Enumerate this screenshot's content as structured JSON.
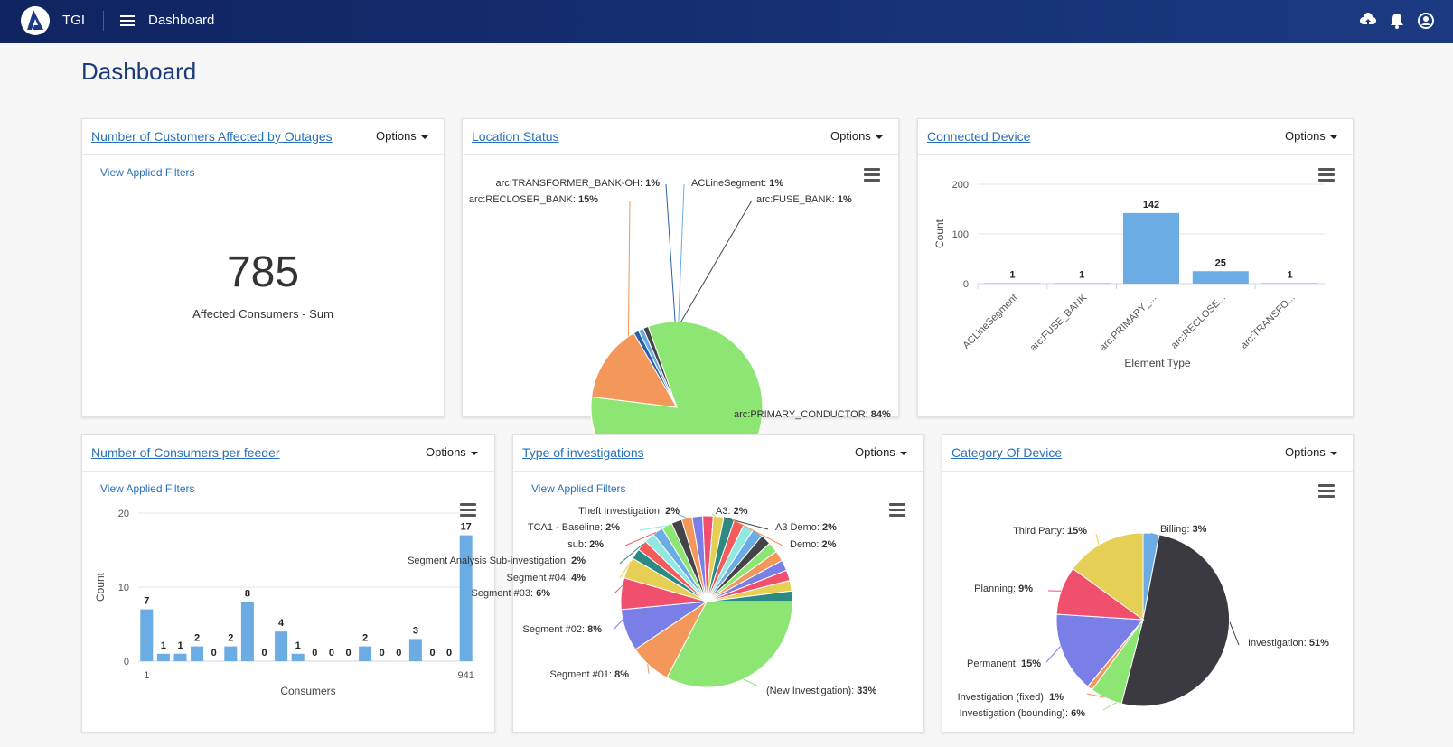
{
  "header": {
    "brand": "TGI",
    "breadcrumb": "Dashboard"
  },
  "page_title": "Dashboard",
  "options_label": "Options",
  "filters_label": "View Applied Filters",
  "cards": {
    "customers_affected": {
      "title": "Number of Customers Affected by Outages",
      "value": "785",
      "caption": "Affected Consumers - Sum"
    },
    "location_status": {
      "title": "Location Status"
    },
    "connected_device": {
      "title": "Connected Device"
    },
    "consumers_per_feeder": {
      "title": "Number of Consumers per feeder"
    },
    "investigations": {
      "title": "Type of investigations"
    },
    "category_device": {
      "title": "Category Of Device"
    }
  },
  "colors": {
    "accent": "#2870b8",
    "header_bg": "#1c3a82",
    "bar": "#6cace4"
  },
  "chart_data": [
    {
      "id": "location_status",
      "type": "pie",
      "labels": [
        "arc:PRIMARY_CONDUCTOR",
        "arc:RECLOSER_BANK",
        "arc:TRANSFORMER_BANK-OH",
        "ACLineSegment",
        "arc:FUSE_BANK"
      ],
      "values": [
        84,
        15,
        1,
        1,
        1
      ],
      "pct_labels": [
        "84%",
        "15%",
        "1%",
        "1%",
        "1%"
      ],
      "colors": [
        "#8de673",
        "#f4975b",
        "#2b5fa8",
        "#6cace4",
        "#444449"
      ]
    },
    {
      "id": "connected_device",
      "type": "bar",
      "categories": [
        "ACLineSegment",
        "arc:FUSE_BANK",
        "arc:PRIMARY_...",
        "arc:RECLOSE...",
        "arc:TRANSFO..."
      ],
      "values": [
        1,
        1,
        142,
        25,
        1
      ],
      "xlabel": "Element Type",
      "ylabel": "Count",
      "yticks": [
        0,
        100,
        200
      ],
      "ylim": [
        0,
        200
      ]
    },
    {
      "id": "consumers_per_feeder",
      "type": "bar",
      "values": [
        7,
        1,
        1,
        2,
        0,
        2,
        8,
        0,
        4,
        1,
        0,
        0,
        0,
        2,
        0,
        0,
        3,
        0,
        0,
        17
      ],
      "xtick_first": "1",
      "xtick_last": "941",
      "xlabel": "Consumers",
      "ylabel": "Count",
      "yticks": [
        0,
        10,
        20
      ],
      "ylim": [
        0,
        20
      ]
    },
    {
      "id": "investigations",
      "type": "pie",
      "labels": [
        "(New Investigation)",
        "Segment #01",
        "Segment #02",
        "Segment #03",
        "Segment #04",
        "Segment Analysis Sub-investigation",
        "sub",
        "TCA1 - Baseline",
        "Theft Investigation",
        "A3",
        "A3 Demo",
        "Demo"
      ],
      "values": [
        33,
        8,
        8,
        6,
        4,
        2,
        2,
        2,
        2,
        2,
        2,
        2
      ],
      "pct_labels": [
        "33%",
        "8%",
        "8%",
        "6%",
        "4%",
        "2%",
        "2%",
        "2%",
        "2%",
        "2%",
        "2%",
        "2%"
      ],
      "colors": [
        "#8de673",
        "#f4975b",
        "#7a7fe8",
        "#f0506e",
        "#e5cf54",
        "#2b8a84",
        "#f45b5b",
        "#91e8e1",
        "#6cace4",
        "#8de673",
        "#444449",
        "#f4975b",
        "#7a7fe8",
        "#f0506e",
        "#e5cf54",
        "#2b8a84",
        "#f45b5b",
        "#91e8e1",
        "#6cace4",
        "#444449"
      ]
    },
    {
      "id": "category_device",
      "type": "pie",
      "labels": [
        "Billing",
        "Investigation",
        "Investigation (bounding)",
        "Investigation (fixed)",
        "Permanent",
        "Planning",
        "Third Party"
      ],
      "values": [
        3,
        51,
        6,
        1,
        15,
        9,
        15
      ],
      "pct_labels": [
        "3%",
        "51%",
        "6%",
        "1%",
        "15%",
        "9%",
        "15%"
      ],
      "colors": [
        "#6cace4",
        "#3a3a40",
        "#8de673",
        "#f4975b",
        "#7a7fe8",
        "#f0506e",
        "#e5cf54"
      ]
    }
  ]
}
